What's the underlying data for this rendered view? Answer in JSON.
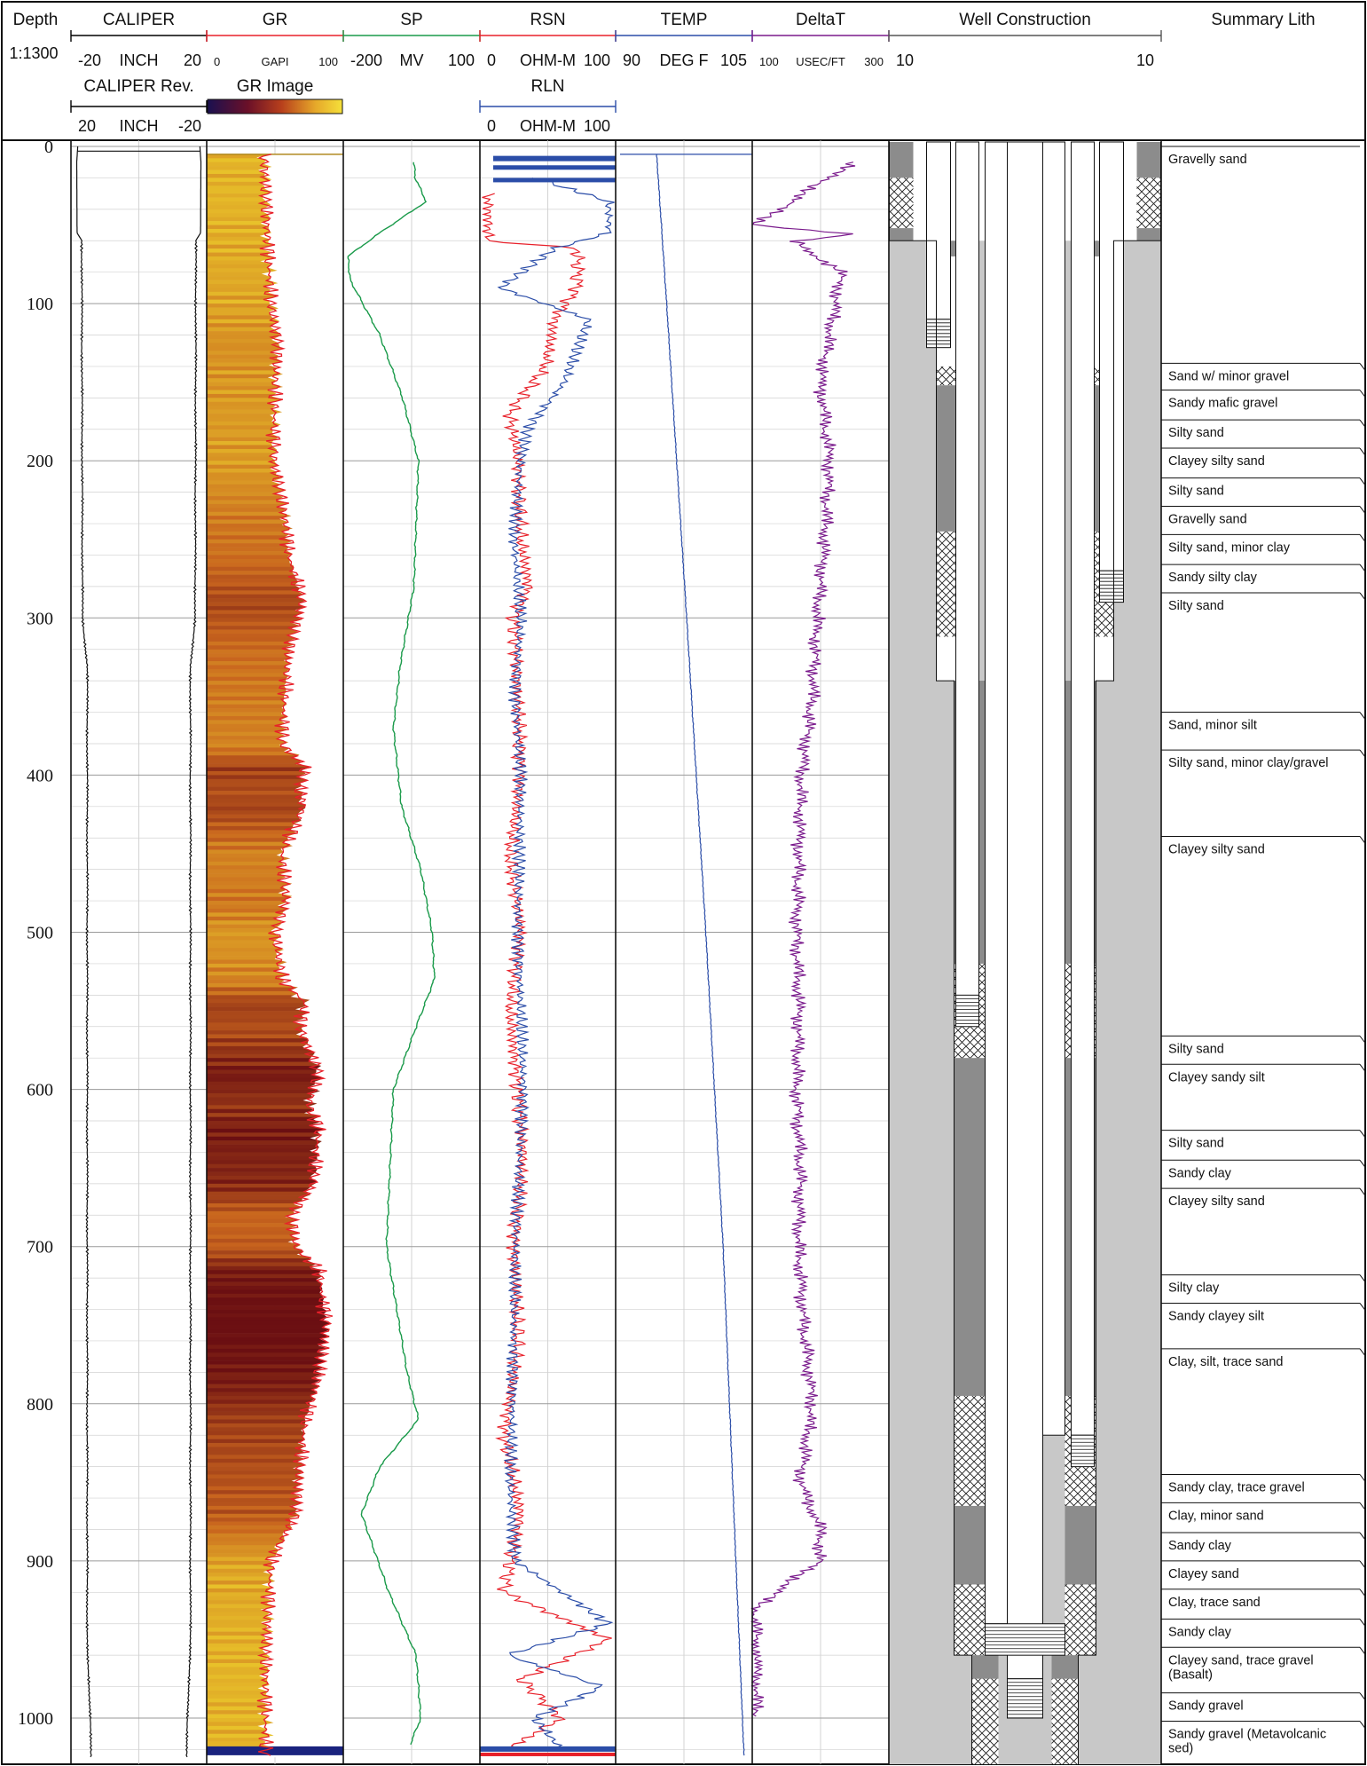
{
  "scale_label": "1:1300",
  "depth": {
    "title": "Depth",
    "min": 0,
    "max": 1025,
    "major_ticks": [
      0,
      100,
      200,
      300,
      400,
      500,
      600,
      700,
      800,
      900,
      1000
    ]
  },
  "tracks": [
    {
      "id": "caliper",
      "title": "CALIPER",
      "color": "#000000",
      "scale": {
        "min": "-20",
        "unit": "INCH",
        "max": "20"
      },
      "second": {
        "title": "CALIPER Rev.",
        "min": "20",
        "unit": "INCH",
        "max": "-20",
        "color": "#000000"
      }
    },
    {
      "id": "gr",
      "title": "GR",
      "color": "#e8202a",
      "scale": {
        "min": "0",
        "unit": "GAPI",
        "max": "100"
      },
      "second": {
        "title": "GR Image"
      }
    },
    {
      "id": "sp",
      "title": "SP",
      "color": "#1a9a4a",
      "scale": {
        "min": "-200",
        "unit": "MV",
        "max": "100"
      }
    },
    {
      "id": "rsn",
      "title": "RSN",
      "color": "#e8202a",
      "scale": {
        "min": "0",
        "unit": "OHM-M",
        "max": "100"
      },
      "second": {
        "title": "RLN",
        "min": "0",
        "unit": "OHM-M",
        "max": "100",
        "color": "#2b4da8"
      }
    },
    {
      "id": "temp",
      "title": "TEMP",
      "color": "#2b4da8",
      "scale": {
        "min": "90",
        "unit": "DEG F",
        "max": "105"
      }
    },
    {
      "id": "deltat",
      "title": "DeltaT",
      "color": "#7a1a8c",
      "scale": {
        "min": "100",
        "unit": "USEC/FT",
        "max": "300"
      }
    },
    {
      "id": "well",
      "title": "Well Construction",
      "color": "#555555",
      "scale": {
        "min": "10",
        "max": "10"
      }
    },
    {
      "id": "lith",
      "title": "Summary Lith",
      "color": "#555555"
    }
  ],
  "chart_data": {
    "type": "line",
    "x_axis": "depth (ft)",
    "series": [
      {
        "name": "CALIPER",
        "unit": "INCH",
        "range": [
          -20,
          20
        ],
        "points": [
          [
            0,
            18.0
          ],
          [
            10,
            18.3
          ],
          [
            55,
            18.2
          ],
          [
            60,
            16.8
          ],
          [
            100,
            16.8
          ],
          [
            300,
            16.6
          ],
          [
            330,
            15.2
          ],
          [
            960,
            15.2
          ],
          [
            1000,
            14.2
          ],
          [
            1025,
            14.2
          ]
        ]
      },
      {
        "name": "GR",
        "unit": "GAPI",
        "range": [
          0,
          100
        ],
        "points": [
          [
            5,
            42
          ],
          [
            50,
            44
          ],
          [
            100,
            47
          ],
          [
            125,
            52
          ],
          [
            150,
            50
          ],
          [
            200,
            49
          ],
          [
            240,
            58
          ],
          [
            260,
            60
          ],
          [
            290,
            70
          ],
          [
            320,
            60
          ],
          [
            350,
            57
          ],
          [
            380,
            55
          ],
          [
            395,
            72
          ],
          [
            410,
            68
          ],
          [
            420,
            71
          ],
          [
            450,
            55
          ],
          [
            480,
            58
          ],
          [
            500,
            50
          ],
          [
            530,
            55
          ],
          [
            545,
            72
          ],
          [
            560,
            68
          ],
          [
            590,
            82
          ],
          [
            600,
            78
          ],
          [
            610,
            75
          ],
          [
            625,
            82
          ],
          [
            640,
            80
          ],
          [
            660,
            78
          ],
          [
            680,
            62
          ],
          [
            700,
            65
          ],
          [
            715,
            82
          ],
          [
            735,
            85
          ],
          [
            750,
            88
          ],
          [
            760,
            86
          ],
          [
            790,
            80
          ],
          [
            810,
            72
          ],
          [
            840,
            68
          ],
          [
            870,
            65
          ],
          [
            900,
            47
          ],
          [
            930,
            45
          ],
          [
            960,
            43
          ],
          [
            1000,
            43
          ],
          [
            1025,
            43
          ]
        ]
      },
      {
        "name": "SP",
        "unit": "MV",
        "range": [
          -200,
          100
        ],
        "points": [
          [
            10,
            -45
          ],
          [
            20,
            -42
          ],
          [
            35,
            -18
          ],
          [
            55,
            -120
          ],
          [
            70,
            -190
          ],
          [
            85,
            -185
          ],
          [
            120,
            -120
          ],
          [
            160,
            -70
          ],
          [
            200,
            -35
          ],
          [
            280,
            -45
          ],
          [
            330,
            -75
          ],
          [
            370,
            -90
          ],
          [
            420,
            -72
          ],
          [
            460,
            -30
          ],
          [
            500,
            -5
          ],
          [
            530,
            0
          ],
          [
            560,
            -40
          ],
          [
            600,
            -90
          ],
          [
            700,
            -105
          ],
          [
            780,
            -60
          ],
          [
            810,
            -35
          ],
          [
            840,
            -120
          ],
          [
            870,
            -160
          ],
          [
            920,
            -100
          ],
          [
            960,
            -40
          ],
          [
            1000,
            -30
          ],
          [
            1018,
            -55
          ]
        ]
      },
      {
        "name": "RSN",
        "unit": "OHM-M",
        "range": [
          0,
          100
        ],
        "points": [
          [
            30,
            6
          ],
          [
            60,
            6
          ],
          [
            65,
            72
          ],
          [
            90,
            72
          ],
          [
            110,
            55
          ],
          [
            140,
            48
          ],
          [
            170,
            22
          ],
          [
            200,
            28
          ],
          [
            250,
            30
          ],
          [
            280,
            36
          ],
          [
            300,
            25
          ],
          [
            350,
            28
          ],
          [
            400,
            30
          ],
          [
            450,
            22
          ],
          [
            500,
            30
          ],
          [
            550,
            22
          ],
          [
            600,
            28
          ],
          [
            640,
            32
          ],
          [
            700,
            25
          ],
          [
            760,
            28
          ],
          [
            820,
            18
          ],
          [
            870,
            30
          ],
          [
            920,
            18
          ],
          [
            950,
            95
          ],
          [
            975,
            30
          ],
          [
            1000,
            60
          ],
          [
            1020,
            20
          ]
        ]
      },
      {
        "name": "RLN",
        "unit": "OHM-M",
        "range": [
          0,
          100
        ],
        "points": [
          [
            20,
            40
          ],
          [
            35,
            95
          ],
          [
            55,
            95
          ],
          [
            65,
            55
          ],
          [
            90,
            15
          ],
          [
            110,
            80
          ],
          [
            150,
            62
          ],
          [
            180,
            35
          ],
          [
            200,
            30
          ],
          [
            250,
            25
          ],
          [
            300,
            30
          ],
          [
            350,
            26
          ],
          [
            400,
            30
          ],
          [
            500,
            28
          ],
          [
            600,
            32
          ],
          [
            700,
            26
          ],
          [
            800,
            24
          ],
          [
            850,
            22
          ],
          [
            900,
            26
          ],
          [
            940,
            95
          ],
          [
            960,
            20
          ],
          [
            980,
            90
          ],
          [
            1000,
            40
          ],
          [
            1020,
            60
          ]
        ]
      },
      {
        "name": "TEMP",
        "unit": "DEG F",
        "range": [
          90,
          105
        ],
        "points": [
          [
            5,
            94.5
          ],
          [
            100,
            95.6
          ],
          [
            300,
            97.8
          ],
          [
            500,
            99.9
          ],
          [
            700,
            101.8
          ],
          [
            900,
            103.2
          ],
          [
            1025,
            104.1
          ]
        ]
      },
      {
        "name": "DeltaT",
        "unit": "USEC/FT",
        "range": [
          100,
          300
        ],
        "points": [
          [
            10,
            247
          ],
          [
            50,
            104
          ],
          [
            56,
            250
          ],
          [
            60,
            160
          ],
          [
            80,
            230
          ],
          [
            100,
            222
          ],
          [
            150,
            200
          ],
          [
            200,
            213
          ],
          [
            250,
            206
          ],
          [
            300,
            195
          ],
          [
            350,
            188
          ],
          [
            400,
            172
          ],
          [
            450,
            168
          ],
          [
            500,
            165
          ],
          [
            550,
            168
          ],
          [
            600,
            165
          ],
          [
            650,
            170
          ],
          [
            700,
            168
          ],
          [
            750,
            175
          ],
          [
            800,
            188
          ],
          [
            850,
            170
          ],
          [
            880,
            200
          ],
          [
            900,
            198
          ],
          [
            930,
            104
          ],
          [
            960,
            106
          ],
          [
            1000,
            106
          ]
        ]
      }
    ]
  },
  "lithology": [
    {
      "top": 0,
      "label": "Gravelly sand"
    },
    {
      "top": 138,
      "label": "Sand w/ minor gravel"
    },
    {
      "top": 155,
      "label": "Sandy mafic gravel"
    },
    {
      "top": 174,
      "label": "Silty sand"
    },
    {
      "top": 192,
      "label": "Clayey silty sand"
    },
    {
      "top": 211,
      "label": "Silty sand"
    },
    {
      "top": 229,
      "label": "Gravelly sand"
    },
    {
      "top": 247,
      "label": "Silty sand, minor clay"
    },
    {
      "top": 266,
      "label": "Sandy silty clay"
    },
    {
      "top": 284,
      "label": "Silty sand"
    },
    {
      "top": 360,
      "label": "Sand, minor silt"
    },
    {
      "top": 384,
      "label": "Silty sand, minor clay/gravel"
    },
    {
      "top": 439,
      "label": "Clayey silty sand"
    },
    {
      "top": 566,
      "label": "Silty sand"
    },
    {
      "top": 584,
      "label": "Clayey sandy silt"
    },
    {
      "top": 626,
      "label": "Silty sand"
    },
    {
      "top": 645,
      "label": "Sandy clay"
    },
    {
      "top": 663,
      "label": "Clayey silty sand"
    },
    {
      "top": 718,
      "label": "Silty clay"
    },
    {
      "top": 736,
      "label": "Sandy clayey silt"
    },
    {
      "top": 765,
      "label": "Clay, silt, trace sand"
    },
    {
      "top": 845,
      "label": "Sandy clay, trace gravel"
    },
    {
      "top": 863,
      "label": "Clay, minor sand"
    },
    {
      "top": 882,
      "label": "Sandy clay"
    },
    {
      "top": 900,
      "label": "Clayey sand"
    },
    {
      "top": 918,
      "label": "Clay, trace sand"
    },
    {
      "top": 937,
      "label": "Sandy clay"
    },
    {
      "top": 955,
      "label": "Clayey sand, trace gravel\n(Basalt)"
    },
    {
      "top": 984,
      "label": "Sandy gravel"
    },
    {
      "top": 1002,
      "label": "Sandy gravel (Metavolcanic\nsed)"
    }
  ],
  "colors": {
    "frame": "#111111",
    "grid": "#c8c8c8",
    "grout": "#c8c8c8",
    "seal": "#8c8c8c",
    "gr_image_low": "#e8c12a",
    "gr_image_mid": "#c8641e",
    "gr_image_high": "#6b0f12",
    "gr_image_bottom": "#1a237e"
  }
}
